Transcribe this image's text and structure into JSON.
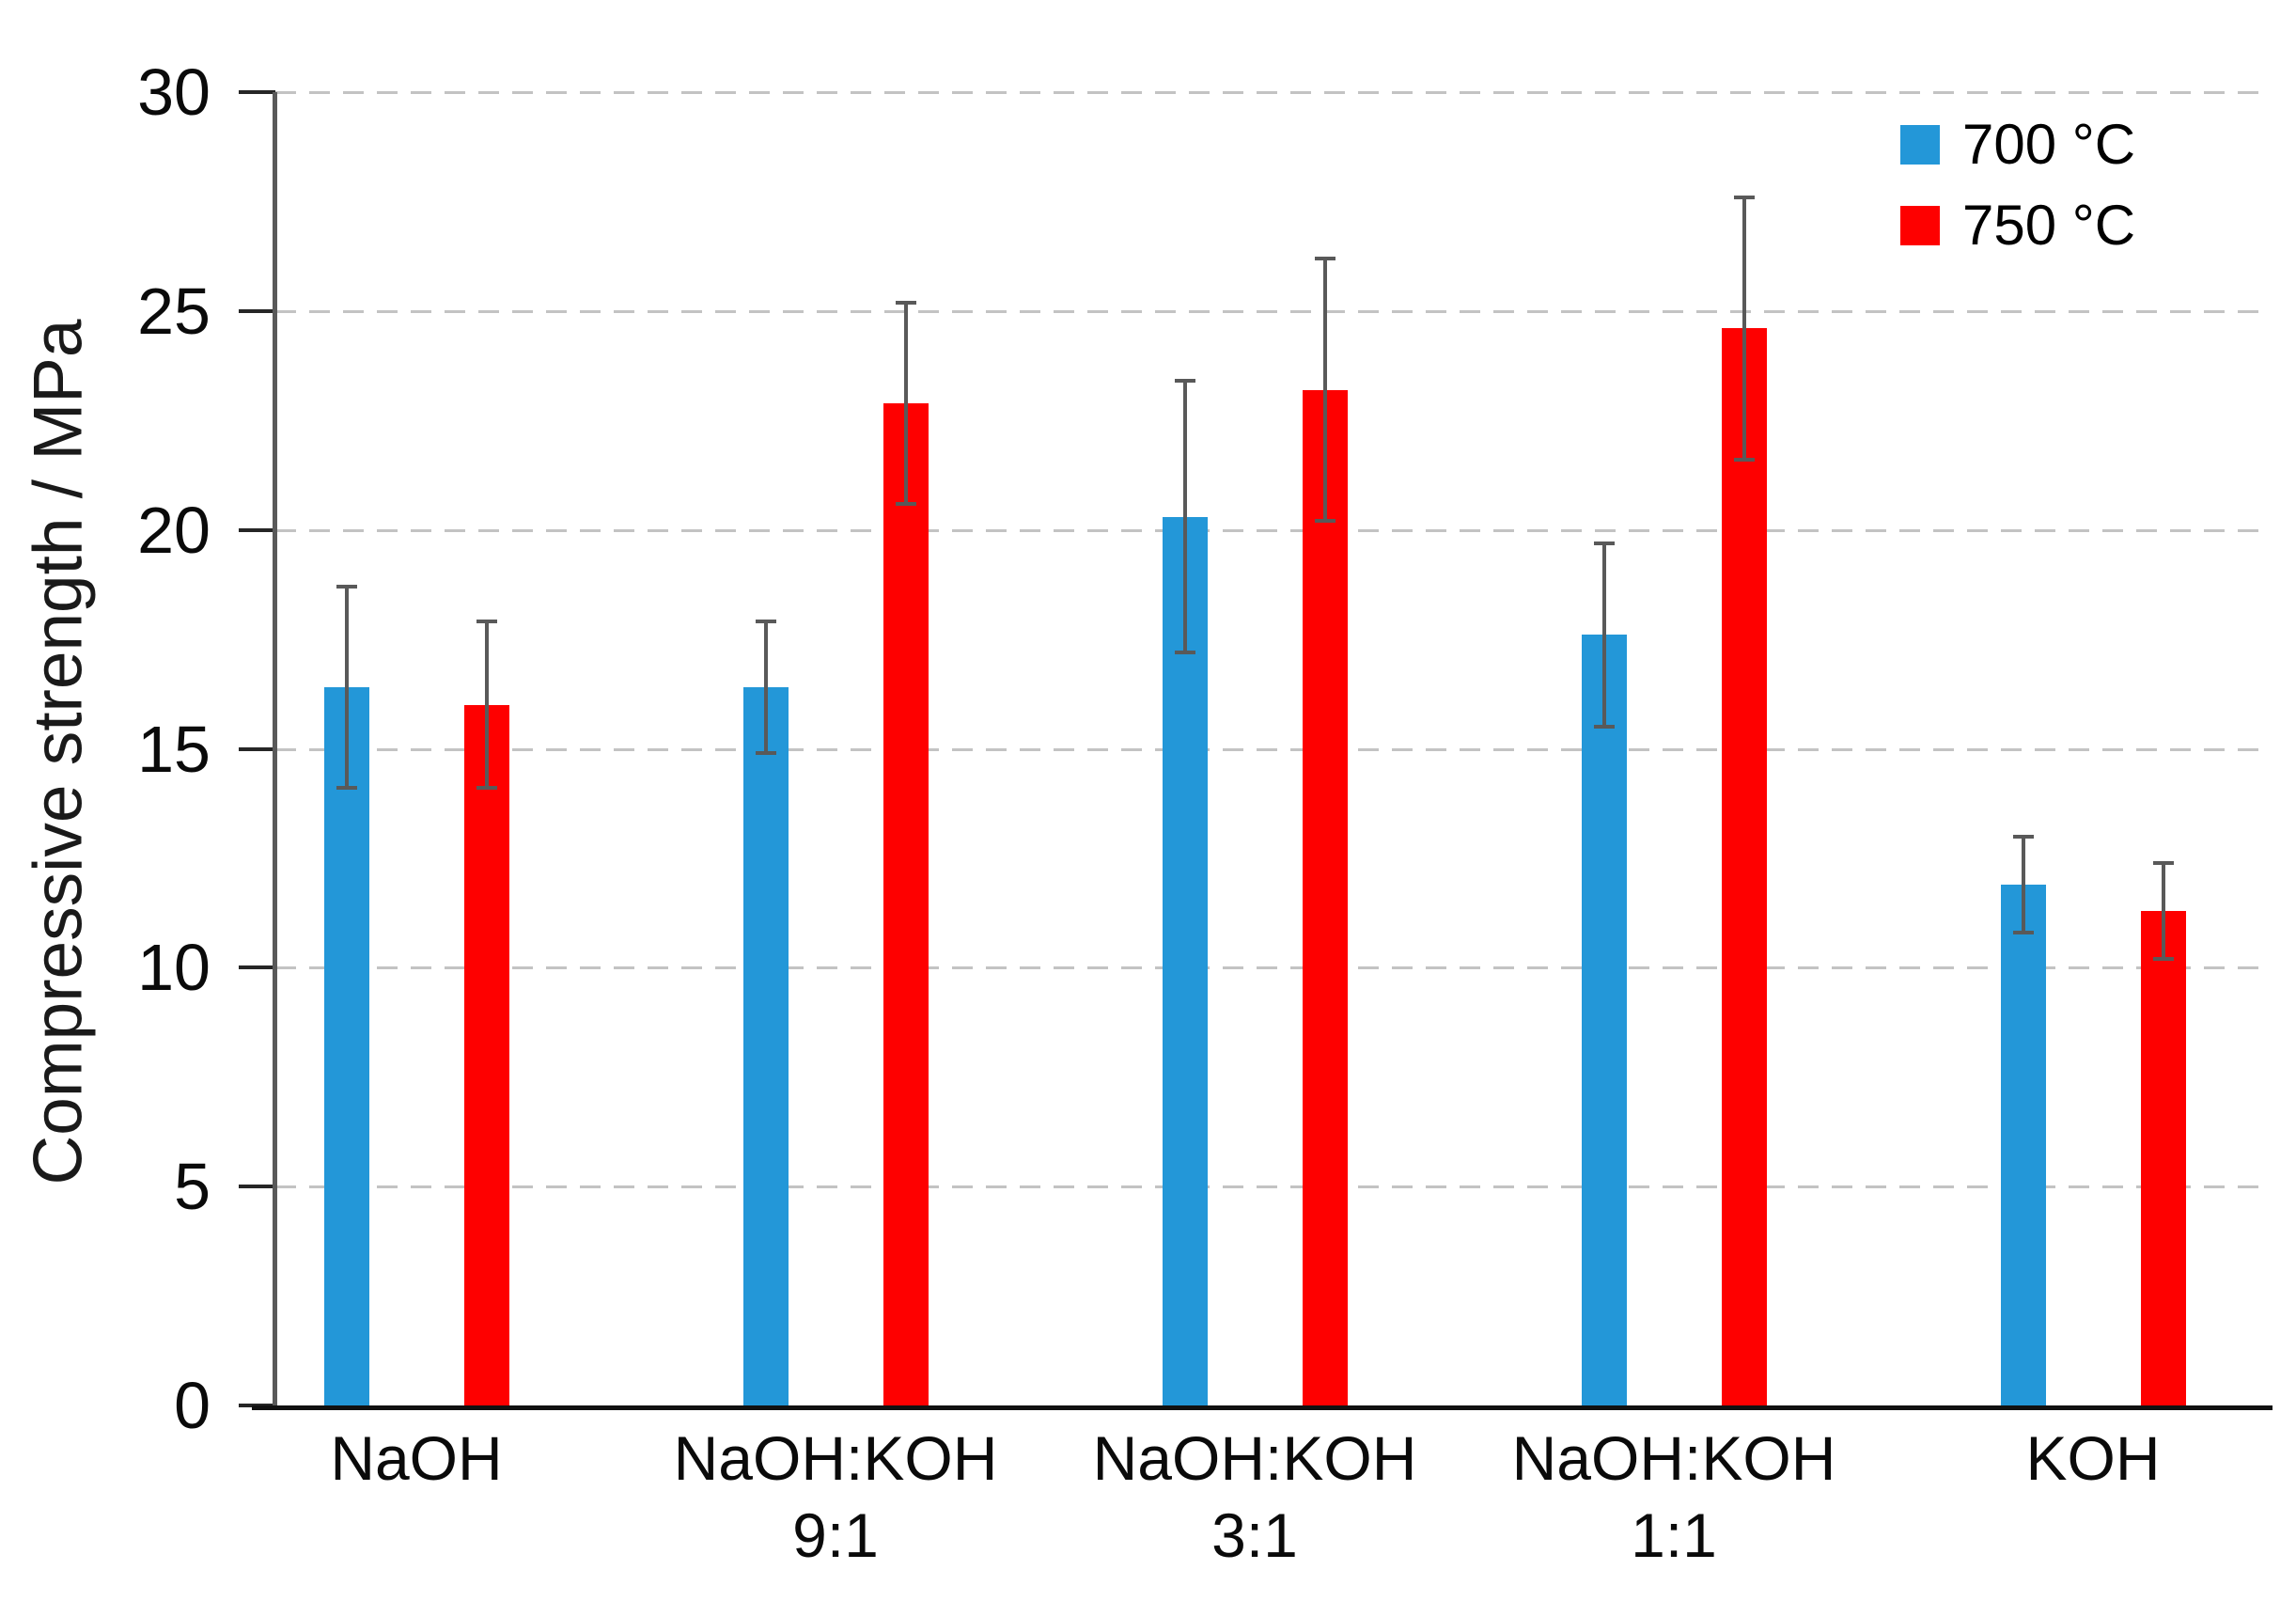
{
  "chart_data": {
    "type": "bar",
    "title": "",
    "ylabel": "Compressive strength / MPa",
    "xlabel": "",
    "ylim": [
      0,
      30
    ],
    "yticks": [
      0,
      5,
      10,
      15,
      20,
      25,
      30
    ],
    "grid": {
      "horizontal": true,
      "style": "dashed",
      "color": "#c3c3c3"
    },
    "legend": {
      "position": "top-right-inside"
    },
    "categories": [
      {
        "label": "NaOH",
        "sublabel": ""
      },
      {
        "label": "NaOH:KOH",
        "sublabel": "9:1"
      },
      {
        "label": "NaOH:KOH",
        "sublabel": "3:1"
      },
      {
        "label": "NaOH:KOH",
        "sublabel": "1:1"
      },
      {
        "label": "KOH",
        "sublabel": ""
      }
    ],
    "series": [
      {
        "name": "700 °C",
        "color": "#2397d8",
        "values": [
          16.4,
          16.4,
          20.3,
          17.6,
          11.9
        ],
        "errors": [
          2.3,
          1.5,
          3.1,
          2.1,
          1.1
        ]
      },
      {
        "name": "750 °C",
        "color": "#fe0000",
        "values": [
          16.0,
          22.9,
          23.2,
          24.6,
          11.3
        ],
        "errors": [
          1.9,
          2.3,
          3.0,
          3.0,
          1.1
        ]
      }
    ],
    "error_bar_color": "#595959",
    "axis_colors": {
      "x_axis": "#111111",
      "y_axis": "#595959",
      "ticks": "#262626"
    }
  }
}
